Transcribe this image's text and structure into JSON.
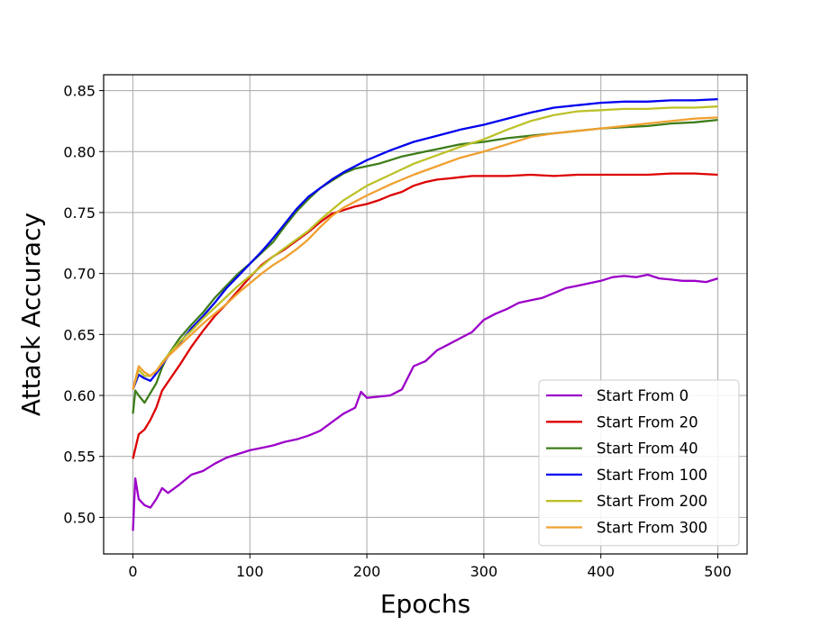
{
  "chart_data": {
    "type": "line",
    "title": "",
    "xlabel": "Epochs",
    "ylabel": "Attack Accuracy",
    "xlim": [
      -25,
      525
    ],
    "ylim": [
      0.47,
      0.863
    ],
    "xticks": [
      0,
      100,
      200,
      300,
      400,
      500
    ],
    "xtick_labels": [
      "0",
      "100",
      "200",
      "300",
      "400",
      "500"
    ],
    "yticks": [
      0.5,
      0.55,
      0.6,
      0.65,
      0.7,
      0.75,
      0.8,
      0.85
    ],
    "ytick_labels": [
      "0.50",
      "0.55",
      "0.60",
      "0.65",
      "0.70",
      "0.75",
      "0.80",
      "0.85"
    ],
    "grid": true,
    "legend_position": "lower-right",
    "series": [
      {
        "name": "Start From 0",
        "color": "#9b00c8",
        "x": [
          0,
          2,
          5,
          10,
          15,
          20,
          25,
          30,
          40,
          50,
          60,
          70,
          80,
          90,
          100,
          110,
          120,
          130,
          140,
          150,
          160,
          170,
          180,
          190,
          195,
          200,
          210,
          220,
          230,
          240,
          250,
          260,
          270,
          280,
          290,
          300,
          310,
          320,
          330,
          340,
          350,
          360,
          370,
          380,
          390,
          400,
          410,
          420,
          430,
          440,
          450,
          460,
          470,
          480,
          490,
          500
        ],
        "y": [
          0.489,
          0.532,
          0.515,
          0.51,
          0.508,
          0.515,
          0.524,
          0.52,
          0.527,
          0.535,
          0.538,
          0.544,
          0.549,
          0.552,
          0.555,
          0.557,
          0.559,
          0.562,
          0.564,
          0.567,
          0.571,
          0.578,
          0.585,
          0.59,
          0.603,
          0.598,
          0.599,
          0.6,
          0.605,
          0.624,
          0.628,
          0.637,
          0.642,
          0.647,
          0.652,
          0.662,
          0.667,
          0.671,
          0.676,
          0.678,
          0.68,
          0.684,
          0.688,
          0.69,
          0.692,
          0.694,
          0.697,
          0.698,
          0.697,
          0.699,
          0.696,
          0.695,
          0.694,
          0.694,
          0.693,
          0.696
        ]
      },
      {
        "name": "Start From 20",
        "color": "#dd0000",
        "x": [
          0,
          5,
          10,
          15,
          20,
          25,
          30,
          40,
          50,
          60,
          70,
          80,
          90,
          100,
          110,
          120,
          130,
          140,
          150,
          160,
          170,
          180,
          190,
          200,
          210,
          220,
          230,
          240,
          250,
          260,
          270,
          280,
          290,
          300,
          320,
          340,
          360,
          380,
          400,
          420,
          440,
          460,
          480,
          500
        ],
        "y": [
          0.548,
          0.568,
          0.572,
          0.58,
          0.59,
          0.604,
          0.611,
          0.625,
          0.64,
          0.653,
          0.665,
          0.675,
          0.686,
          0.697,
          0.707,
          0.714,
          0.72,
          0.727,
          0.734,
          0.742,
          0.749,
          0.752,
          0.755,
          0.757,
          0.76,
          0.764,
          0.767,
          0.772,
          0.775,
          0.777,
          0.778,
          0.779,
          0.78,
          0.78,
          0.78,
          0.781,
          0.78,
          0.781,
          0.781,
          0.781,
          0.781,
          0.782,
          0.782,
          0.781
        ]
      },
      {
        "name": "Start From 40",
        "color": "#3e7d1a",
        "x": [
          0,
          2,
          5,
          10,
          15,
          20,
          25,
          30,
          40,
          50,
          60,
          70,
          80,
          90,
          100,
          110,
          120,
          130,
          140,
          150,
          160,
          170,
          180,
          190,
          200,
          210,
          220,
          230,
          240,
          250,
          260,
          270,
          280,
          290,
          300,
          320,
          340,
          360,
          380,
          400,
          420,
          440,
          460,
          480,
          500
        ],
        "y": [
          0.585,
          0.604,
          0.6,
          0.594,
          0.602,
          0.61,
          0.623,
          0.633,
          0.647,
          0.658,
          0.668,
          0.68,
          0.69,
          0.7,
          0.708,
          0.717,
          0.726,
          0.739,
          0.751,
          0.761,
          0.77,
          0.776,
          0.782,
          0.786,
          0.788,
          0.79,
          0.793,
          0.796,
          0.798,
          0.8,
          0.802,
          0.804,
          0.806,
          0.807,
          0.808,
          0.811,
          0.813,
          0.815,
          0.817,
          0.819,
          0.82,
          0.821,
          0.823,
          0.824,
          0.826
        ]
      },
      {
        "name": "Start From 100",
        "color": "#0000ee",
        "x": [
          0,
          5,
          10,
          15,
          20,
          25,
          30,
          40,
          50,
          60,
          70,
          80,
          90,
          100,
          110,
          120,
          130,
          140,
          150,
          160,
          170,
          180,
          190,
          200,
          220,
          240,
          260,
          280,
          300,
          320,
          340,
          360,
          380,
          400,
          420,
          440,
          460,
          480,
          500
        ],
        "y": [
          0.605,
          0.617,
          0.614,
          0.612,
          0.618,
          0.625,
          0.632,
          0.643,
          0.655,
          0.665,
          0.676,
          0.688,
          0.698,
          0.708,
          0.718,
          0.729,
          0.741,
          0.753,
          0.763,
          0.77,
          0.777,
          0.783,
          0.788,
          0.793,
          0.801,
          0.808,
          0.813,
          0.818,
          0.822,
          0.827,
          0.832,
          0.836,
          0.838,
          0.84,
          0.841,
          0.841,
          0.842,
          0.842,
          0.843
        ]
      },
      {
        "name": "Start From 200",
        "color": "#bcc128",
        "x": [
          0,
          5,
          10,
          15,
          20,
          25,
          30,
          40,
          50,
          60,
          70,
          80,
          90,
          100,
          110,
          120,
          130,
          140,
          150,
          160,
          170,
          180,
          190,
          200,
          220,
          240,
          260,
          280,
          300,
          320,
          340,
          360,
          380,
          400,
          420,
          440,
          460,
          480,
          500
        ],
        "y": [
          0.605,
          0.621,
          0.616,
          0.616,
          0.62,
          0.627,
          0.633,
          0.644,
          0.653,
          0.663,
          0.672,
          0.681,
          0.69,
          0.698,
          0.706,
          0.714,
          0.721,
          0.728,
          0.735,
          0.744,
          0.752,
          0.76,
          0.766,
          0.772,
          0.781,
          0.79,
          0.797,
          0.804,
          0.81,
          0.818,
          0.825,
          0.83,
          0.833,
          0.834,
          0.835,
          0.835,
          0.836,
          0.836,
          0.837
        ]
      },
      {
        "name": "Start From 300",
        "color": "#f0a030",
        "x": [
          0,
          5,
          10,
          15,
          20,
          25,
          30,
          40,
          50,
          60,
          70,
          80,
          90,
          100,
          110,
          120,
          130,
          140,
          150,
          160,
          170,
          180,
          190,
          200,
          220,
          240,
          260,
          280,
          300,
          320,
          340,
          360,
          380,
          400,
          420,
          440,
          460,
          480,
          500
        ],
        "y": [
          0.605,
          0.624,
          0.619,
          0.616,
          0.62,
          0.626,
          0.632,
          0.641,
          0.65,
          0.659,
          0.667,
          0.675,
          0.684,
          0.692,
          0.7,
          0.707,
          0.713,
          0.72,
          0.728,
          0.738,
          0.747,
          0.754,
          0.759,
          0.764,
          0.773,
          0.781,
          0.788,
          0.795,
          0.8,
          0.806,
          0.812,
          0.815,
          0.817,
          0.819,
          0.821,
          0.823,
          0.825,
          0.827,
          0.828
        ]
      }
    ]
  }
}
